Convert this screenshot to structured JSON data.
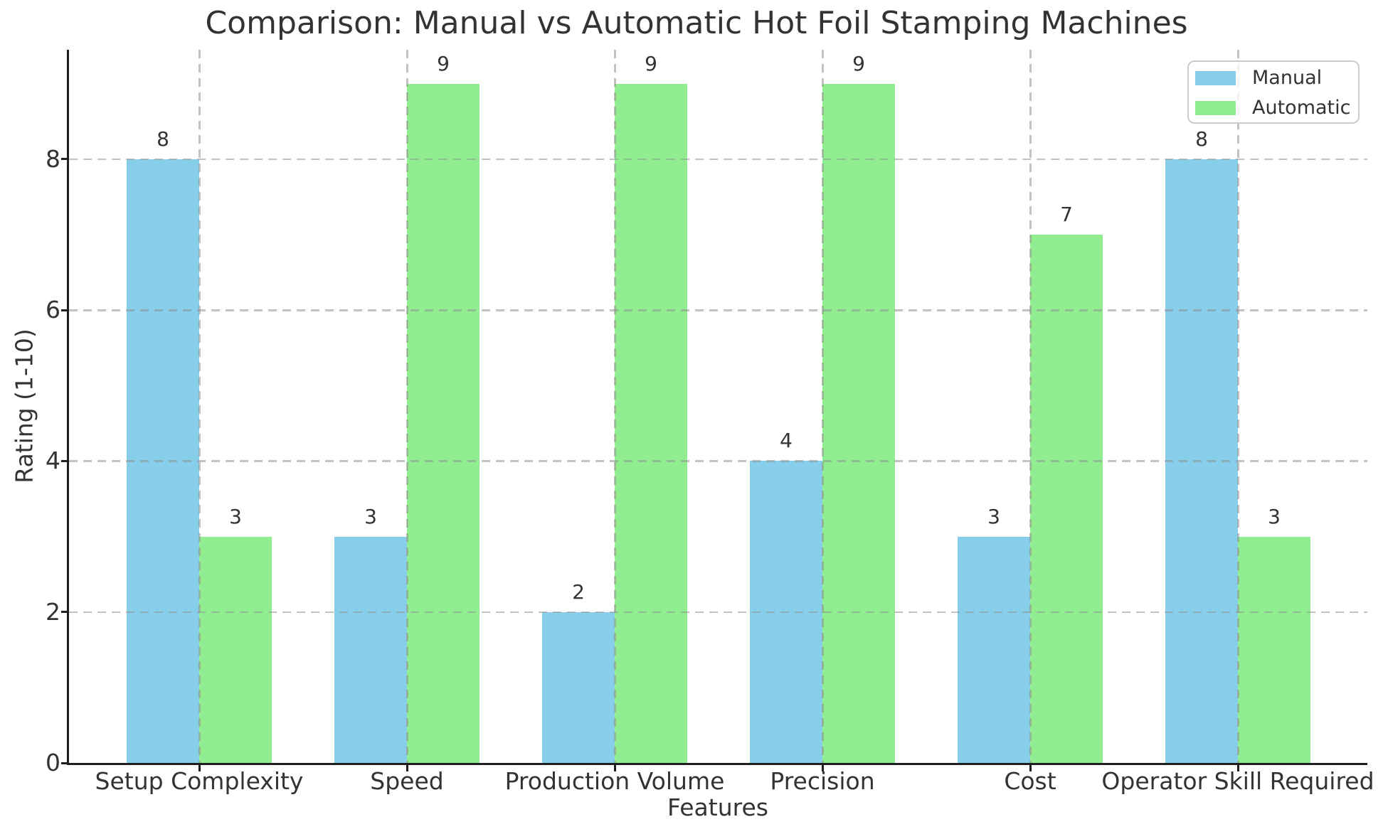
{
  "chart_data": {
    "type": "bar",
    "title": "Comparison: Manual vs Automatic Hot Foil Stamping Machines",
    "xlabel": "Features",
    "ylabel": "Rating (1-10)",
    "categories": [
      "Setup Complexity",
      "Speed",
      "Production Volume",
      "Precision",
      "Cost",
      "Operator Skill Required"
    ],
    "series": [
      {
        "name": "Manual",
        "color": "#87ceeb",
        "values": [
          8,
          3,
          2,
          4,
          3,
          8
        ]
      },
      {
        "name": "Automatic",
        "color": "#90ee90",
        "values": [
          3,
          9,
          9,
          9,
          7,
          3
        ]
      }
    ],
    "value_labels_shown": true,
    "yticks": [
      0,
      2,
      4,
      6,
      8
    ],
    "ylim": [
      0,
      9.45
    ],
    "grid": {
      "style": "dashed",
      "axes": "both",
      "color": "#c9c9c9"
    },
    "legend": {
      "position": "upper-right",
      "entries": [
        "Manual",
        "Automatic"
      ]
    }
  },
  "styles": {
    "background": "#ffffff",
    "text_color": "#333333",
    "spine_color": "#1f1f1f",
    "manual_color": "#87ceeb",
    "automatic_color": "#90ee90"
  }
}
